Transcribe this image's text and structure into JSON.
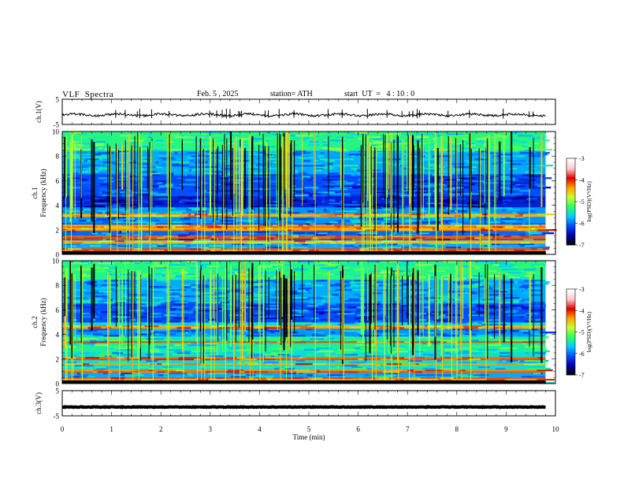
{
  "header": {
    "title": "VLF  Spectra",
    "date": "Feb. 5 , 2025",
    "station": "station= ATH",
    "start": "start  UT  =   4 : 10 : 0"
  },
  "chart_data": {
    "type": "heatmap",
    "xlabel": "Time  (min)",
    "xlim": [
      0,
      10
    ],
    "xticks": [
      "0",
      "1",
      "2",
      "3",
      "4",
      "5",
      "6",
      "7",
      "8",
      "9",
      "10"
    ],
    "panels": [
      {
        "ylabel": "ch.1(V)",
        "type": "line",
        "ylim": [
          -5,
          5
        ],
        "yticks": [
          "5",
          "-5"
        ],
        "mean_level": -1.2
      },
      {
        "ylabel": "ch.1\nFrequency (kHz)",
        "type": "heatmap",
        "ylim": [
          0,
          10
        ],
        "yticks": [
          "0",
          "2",
          "4",
          "6",
          "8",
          "10"
        ],
        "strong_bands_khz": [
          0.4,
          1.0,
          1.4,
          2.0,
          2.3,
          3.2
        ]
      },
      {
        "ylabel": "ch.2\nFrequency (kHz)",
        "type": "heatmap",
        "ylim": [
          0,
          10
        ],
        "yticks": [
          "0",
          "2",
          "4",
          "6",
          "8",
          "10"
        ],
        "strong_bands_khz": [
          0.4,
          1.0,
          1.6,
          2.0,
          2.1,
          3.4,
          4.6
        ]
      },
      {
        "ylabel": "ch.3(V)",
        "type": "line",
        "ylim": [
          -5,
          5
        ],
        "yticks": [
          "5",
          "-5"
        ],
        "mean_level": -1.5
      }
    ],
    "colorbar": {
      "label": "log(PSD)(V²/Hz)",
      "range": [
        -7,
        -3
      ],
      "ticks": [
        "-3",
        "-4",
        "-5",
        "-6",
        "-7"
      ],
      "colors": [
        "#000000",
        "#0000b4",
        "#0050ff",
        "#00d2ff",
        "#30ff60",
        "#c8ff30",
        "#ffa000",
        "#e00000",
        "#ffc8c8",
        "#ffffff"
      ]
    },
    "series": []
  }
}
